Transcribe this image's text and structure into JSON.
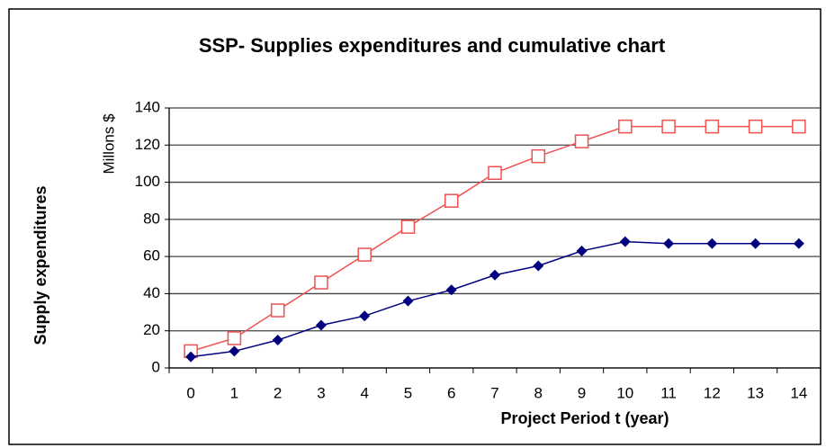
{
  "chart_data": {
    "type": "line",
    "title": "SSP- Supplies expenditures and cumulative chart",
    "x_label": "Project Period t (year)",
    "y_label": "Supply expenditures",
    "y_unit_label": "Millons $",
    "categories": [
      0,
      1,
      2,
      3,
      4,
      5,
      6,
      7,
      8,
      9,
      10,
      11,
      12,
      13,
      14
    ],
    "series": [
      {
        "color": "#f05050",
        "marker": "square-open",
        "values": [
          9,
          16,
          31,
          46,
          61,
          76,
          90,
          105,
          114,
          122,
          130,
          130,
          130,
          130,
          130
        ]
      },
      {
        "color": "#00007f",
        "marker": "diamond",
        "values": [
          6,
          9,
          15,
          23,
          28,
          36,
          42,
          50,
          55,
          63,
          68,
          67,
          67,
          67,
          67
        ]
      }
    ],
    "ylim": [
      0,
      140
    ],
    "yticks": [
      0,
      20,
      40,
      60,
      80,
      100,
      120,
      140
    ],
    "grid": true
  }
}
